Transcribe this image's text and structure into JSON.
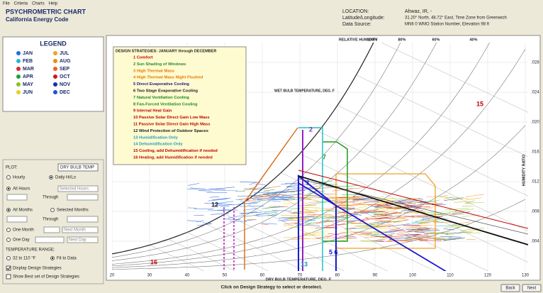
{
  "menu": [
    "File",
    "Criteria",
    "Charts",
    "Help"
  ],
  "header": {
    "title": "PSYCHROMETRIC CHART",
    "subtitle": "California Energy Code",
    "location_label": "LOCATION:",
    "location": "Ahwaz, IR, -",
    "latlon_label": "Latitude/Longitude:",
    "latlon": "31.20° North, 48.72° East, Time Zone from Greenwich",
    "source_label": "Data Source:",
    "source": "MN6   0 WMO Station Number, Elevation 98 ft"
  },
  "legend": {
    "title": "LEGEND",
    "items": [
      {
        "name": "JAN",
        "color": "#1e6fe0"
      },
      {
        "name": "JUL",
        "color": "#f0a020"
      },
      {
        "name": "FEB",
        "color": "#20b8d8"
      },
      {
        "name": "AUG",
        "color": "#f08a10"
      },
      {
        "name": "MAR",
        "color": "#e02828"
      },
      {
        "name": "SEP",
        "color": "#f06020"
      },
      {
        "name": "APR",
        "color": "#20a040"
      },
      {
        "name": "OCT",
        "color": "#d01818"
      },
      {
        "name": "MAY",
        "color": "#90c020"
      },
      {
        "name": "NOV",
        "color": "#1830a0"
      },
      {
        "name": "JUN",
        "color": "#e8d020"
      },
      {
        "name": "DEC",
        "color": "#2050d0"
      }
    ]
  },
  "controls": {
    "plot_label": "PLOT:",
    "plot_value": "DRY BULB TEMP",
    "hourly": "Hourly",
    "daily": "Daily Hi/Lo",
    "all_hours": "All Hours",
    "selected_hours": "Selected Hours",
    "through": "Through",
    "all_months": "All Months",
    "selected_months": "Selected Months",
    "one_month": "One Month",
    "next_month": "Next Month",
    "one_day": "One Day",
    "next_day": "Next Day",
    "temp_range": "TEMPERATURE RANGE:",
    "range_value": "32 to 110 °F",
    "fit": "Fit to Data",
    "display_strategies": "Display Design Strategies",
    "best_set": "Show Best set of Design Strategies"
  },
  "chart": {
    "strategies_title": "DESIGN STRATEGIES:  JANUARY through DECEMBER",
    "strategies": [
      {
        "label": "1  Comfort",
        "color": "#c00000"
      },
      {
        "label": "2  Sun Shading of Windows",
        "color": "#2a8a2a"
      },
      {
        "label": "3  High Thermal Mass",
        "color": "#e07800"
      },
      {
        "label": "4  High Thermal Mass Night Flushed",
        "color": "#e07800"
      },
      {
        "label": "5  Direct Evaporative Cooling",
        "color": "#1a1a8a"
      },
      {
        "label": "6  Two Stage Evaporative Cooling",
        "color": "#1a1a1a"
      },
      {
        "label": "7  Natural Ventilation Cooling",
        "color": "#1a8a1a"
      },
      {
        "label": "8  Fan-Forced Ventilation Cooling",
        "color": "#1a8a1a"
      },
      {
        "label": "9  Internal Heat Gain",
        "color": "#c00000"
      },
      {
        "label": "10  Passive Solar Direct Gain Low Mass",
        "color": "#c00000"
      },
      {
        "label": "11  Passive Solar Direct Gain High Mass",
        "color": "#c00000"
      },
      {
        "label": "12  Wind Protection of Outdoor Spaces",
        "color": "#1a1a1a"
      },
      {
        "label": "13  Humidification Only",
        "color": "#1a9ac0"
      },
      {
        "label": "14  Dehumidification Only",
        "color": "#1a9ac0"
      },
      {
        "label": "15  Cooling, add Dehumidification if needed",
        "color": "#c00000"
      },
      {
        "label": "16  Heating, add Humidification if needed",
        "color": "#c00000"
      }
    ],
    "x_label": "DRY BULB TEMPERATURE, DEG. F",
    "x_ticks": [
      "20",
      "30",
      "40",
      "50",
      "60",
      "70",
      "80",
      "90",
      "100",
      "110",
      "120",
      "130"
    ],
    "y_label": "HUMIDITY RATIO",
    "y_ticks": [
      ".028",
      ".024",
      ".020",
      ".016",
      ".012",
      ".008",
      ".004"
    ],
    "rh_label": "RELATIVE HUMIDITY",
    "rh_ticks": [
      "100%",
      "80%",
      "60%",
      "40%"
    ],
    "wet_bulb_label": "WET BULB TEMPERATURE, DEG. F",
    "zone_labels": [
      "1",
      "2",
      "5  6",
      "7",
      "12",
      "13",
      "15",
      "16"
    ]
  },
  "status": "Click on Design Strategy to select or deselect.",
  "buttons": [
    "Back",
    "Next"
  ]
}
